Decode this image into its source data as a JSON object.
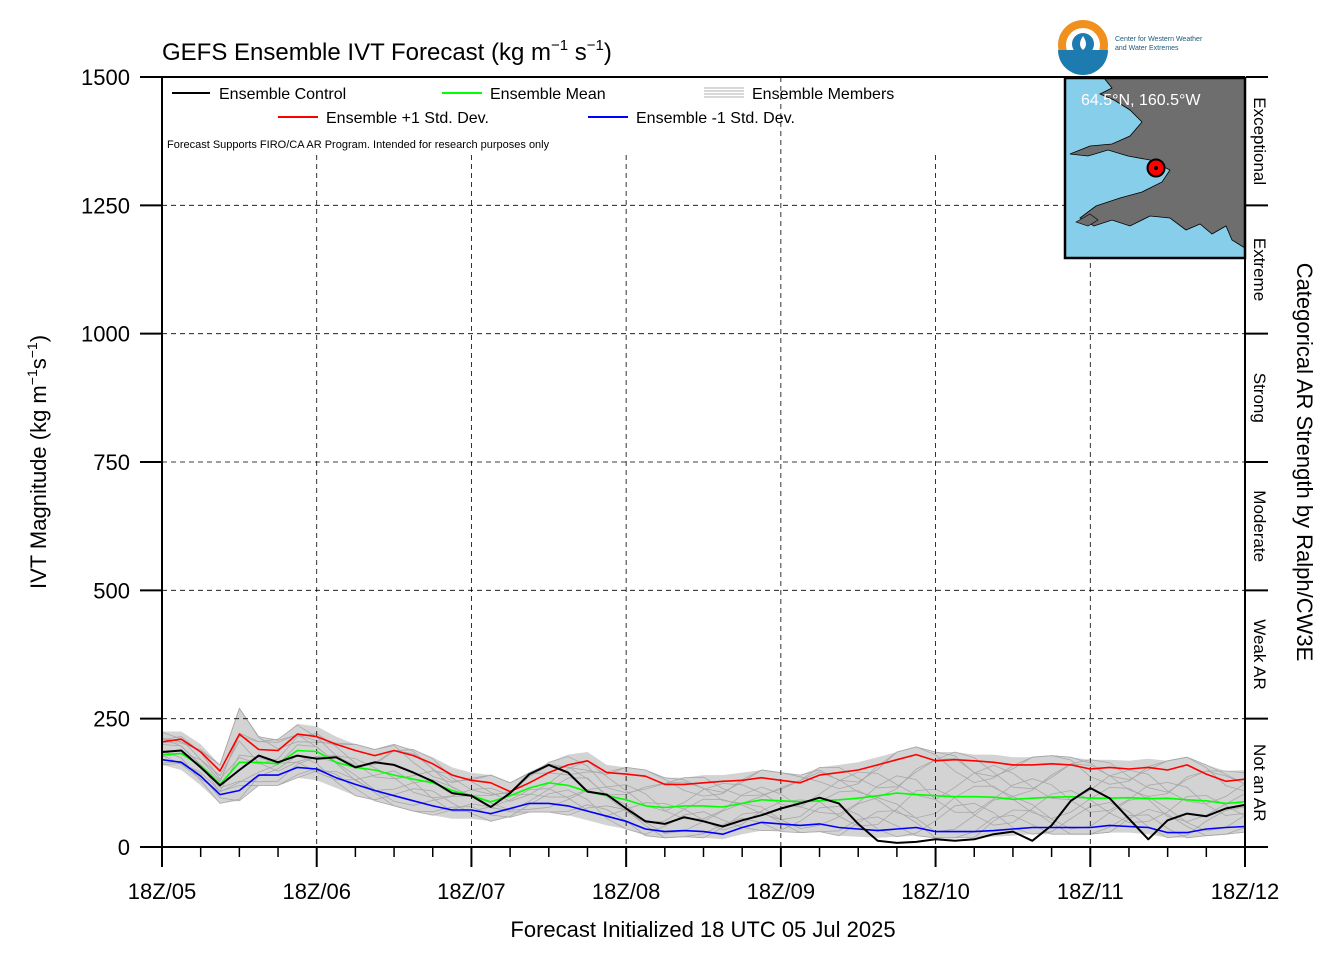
{
  "title": "GEFS Ensemble IVT Forecast (kg m",
  "title_sup1": "−1",
  "title_mid": " s",
  "title_sup2": "−1",
  "title_end": ")",
  "ylabel_main": "IVT Magnitude (kg m",
  "ylabel_sup1": "−1",
  "ylabel_mid": "s",
  "ylabel_sup2": "−1",
  "ylabel_end": ")",
  "xlabel": "Forecast Initialized 18 UTC 05 Jul 2025",
  "right_label": "Categorical AR Strength by Ralph/CW3E",
  "disclaimer": "Forecast Supports FIRO/CA AR Program. Intended for research purposes only",
  "logo": {
    "line1": "Center for Western Weather",
    "line2": "and Water Extremes",
    "colors": {
      "orange": "#f0901e",
      "blue": "#1e7bb0"
    }
  },
  "inset": {
    "location": "64.5°N, 160.5°W",
    "colors": {
      "water": "#87ceeb",
      "land": "#6e6e6e",
      "marker": "#ff0000"
    }
  },
  "legend": [
    {
      "label": "Ensemble Control",
      "color": "#000000"
    },
    {
      "label": "Ensemble Mean",
      "color": "#00ff00"
    },
    {
      "label": "Ensemble Members",
      "color": "#b0b0b0"
    },
    {
      "label": "Ensemble +1 Std. Dev.",
      "color": "#ff0000"
    },
    {
      "label": "Ensemble -1 Std. Dev.",
      "color": "#0000ff"
    }
  ],
  "categories": [
    {
      "label": "Not an AR",
      "lo": 0,
      "hi": 250
    },
    {
      "label": "Weak AR",
      "lo": 250,
      "hi": 500
    },
    {
      "label": "Moderate",
      "lo": 500,
      "hi": 750
    },
    {
      "label": "Strong",
      "lo": 750,
      "hi": 1000
    },
    {
      "label": "Extreme",
      "lo": 1000,
      "hi": 1250
    },
    {
      "label": "Exceptional",
      "lo": 1250,
      "hi": 1500
    }
  ],
  "chart_data": {
    "type": "line",
    "x_unit": "forecast hour",
    "x_ticks": [
      {
        "hour": 0,
        "label": "18Z/05"
      },
      {
        "hour": 24,
        "label": "18Z/06"
      },
      {
        "hour": 48,
        "label": "18Z/07"
      },
      {
        "hour": 72,
        "label": "18Z/08"
      },
      {
        "hour": 96,
        "label": "18Z/09"
      },
      {
        "hour": 120,
        "label": "18Z/10"
      },
      {
        "hour": 144,
        "label": "18Z/11"
      },
      {
        "hour": 168,
        "label": "18Z/12"
      }
    ],
    "xlim": [
      0,
      168
    ],
    "ylim": [
      0,
      1500
    ],
    "y_ticks": [
      0,
      250,
      500,
      750,
      1000,
      1250,
      1500
    ],
    "grid": "dashed",
    "legend_position": "top-left",
    "x": [
      0,
      3,
      6,
      9,
      12,
      15,
      18,
      21,
      24,
      27,
      30,
      33,
      36,
      39,
      42,
      45,
      48,
      51,
      54,
      57,
      60,
      63,
      66,
      69,
      72,
      75,
      78,
      81,
      84,
      87,
      90,
      93,
      96,
      99,
      102,
      105,
      108,
      111,
      114,
      117,
      120,
      123,
      126,
      129,
      132,
      135,
      138,
      141,
      144,
      147,
      150,
      153,
      156,
      159,
      162,
      165,
      168
    ],
    "series": [
      {
        "name": "Ensemble Control",
        "color": "#000000",
        "values": [
          185,
          188,
          155,
          120,
          150,
          178,
          165,
          178,
          172,
          175,
          155,
          165,
          160,
          145,
          128,
          105,
          100,
          78,
          105,
          142,
          160,
          145,
          108,
          102,
          75,
          50,
          45,
          58,
          50,
          40,
          52,
          62,
          75,
          85,
          96,
          85,
          45,
          12,
          8,
          10,
          15,
          12,
          15,
          25,
          30,
          12,
          42,
          90,
          115,
          95,
          55,
          15,
          52,
          65,
          60,
          75,
          82
        ]
      },
      {
        "name": "Ensemble Mean",
        "color": "#00ff00",
        "values": [
          180,
          182,
          158,
          122,
          165,
          165,
          162,
          188,
          186,
          165,
          155,
          150,
          140,
          132,
          125,
          110,
          100,
          88,
          100,
          115,
          125,
          120,
          108,
          100,
          92,
          80,
          77,
          80,
          80,
          78,
          85,
          92,
          90,
          88,
          90,
          92,
          95,
          100,
          105,
          102,
          100,
          98,
          98,
          97,
          93,
          95,
          97,
          98,
          95,
          95,
          96,
          94,
          95,
          92,
          90,
          85,
          88
        ]
      },
      {
        "name": "Ensemble +1 Std. Dev.",
        "color": "#ff0000",
        "values": [
          205,
          210,
          185,
          148,
          220,
          190,
          188,
          220,
          215,
          200,
          188,
          178,
          188,
          178,
          162,
          140,
          130,
          125,
          108,
          125,
          145,
          160,
          168,
          145,
          142,
          138,
          122,
          122,
          125,
          128,
          130,
          135,
          130,
          125,
          140,
          145,
          150,
          160,
          170,
          180,
          168,
          170,
          168,
          165,
          160,
          160,
          162,
          160,
          152,
          155,
          152,
          155,
          150,
          160,
          142,
          128,
          132
        ]
      },
      {
        "name": "Ensemble -1 Std. Dev.",
        "color": "#0000ff",
        "values": [
          170,
          165,
          138,
          102,
          110,
          140,
          140,
          155,
          152,
          135,
          122,
          110,
          100,
          90,
          80,
          72,
          72,
          65,
          75,
          85,
          85,
          80,
          70,
          60,
          50,
          35,
          30,
          32,
          30,
          25,
          38,
          48,
          45,
          42,
          45,
          38,
          35,
          32,
          35,
          38,
          30,
          30,
          30,
          32,
          35,
          38,
          38,
          38,
          38,
          42,
          40,
          38,
          28,
          28,
          35,
          38,
          40
        ]
      }
    ],
    "members_band": {
      "name": "Ensemble Members",
      "upper": [
        225,
        225,
        200,
        160,
        270,
        215,
        210,
        240,
        235,
        215,
        200,
        190,
        200,
        190,
        175,
        155,
        145,
        140,
        125,
        145,
        165,
        180,
        185,
        160,
        155,
        150,
        135,
        135,
        140,
        140,
        145,
        150,
        145,
        140,
        155,
        160,
        165,
        175,
        185,
        195,
        185,
        185,
        180,
        180,
        175,
        175,
        178,
        175,
        170,
        170,
        168,
        172,
        168,
        175,
        160,
        148,
        150
      ],
      "lower": [
        160,
        150,
        120,
        85,
        90,
        120,
        120,
        135,
        130,
        115,
        100,
        90,
        80,
        70,
        62,
        55,
        55,
        50,
        58,
        68,
        68,
        62,
        52,
        42,
        35,
        22,
        18,
        20,
        18,
        15,
        25,
        32,
        30,
        28,
        30,
        22,
        20,
        18,
        20,
        22,
        18,
        18,
        18,
        20,
        22,
        25,
        25,
        25,
        25,
        28,
        28,
        25,
        18,
        18,
        22,
        25,
        28
      ]
    }
  }
}
